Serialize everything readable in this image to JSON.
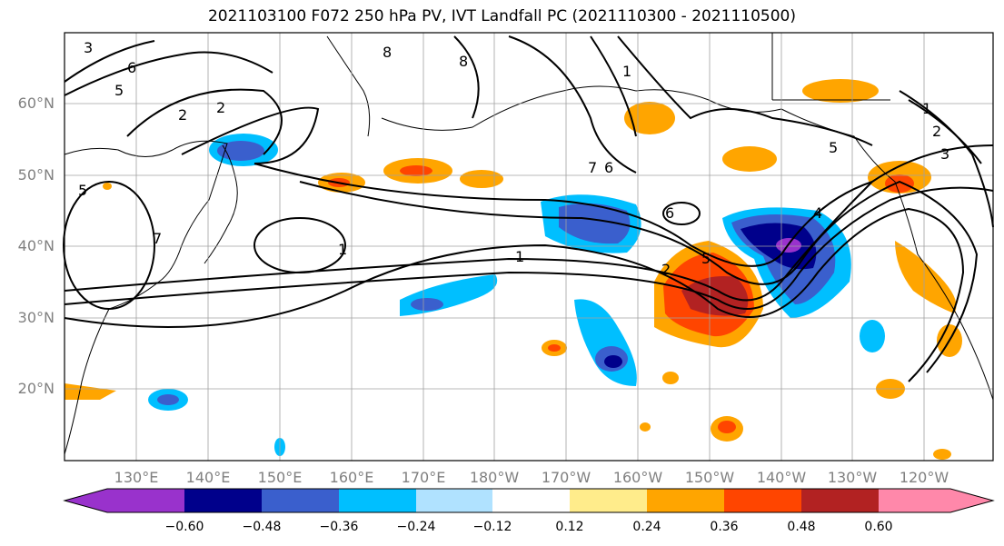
{
  "title": "2021103100 F072 250 hPa PV, IVT Landfall PC (2021110300 - 2021110500)",
  "lat_labels": [
    "60°N",
    "50°N",
    "40°N",
    "30°N",
    "20°N"
  ],
  "lon_labels": [
    "130°E",
    "140°E",
    "150°E",
    "160°E",
    "170°E",
    "180°W",
    "170°W",
    "160°W",
    "150°W",
    "140°W",
    "130°W",
    "120°W"
  ],
  "contour_labels": [
    "1",
    "2",
    "5",
    "6",
    "8",
    "1",
    "2",
    "3",
    "4",
    "5",
    "6",
    "7",
    "8",
    "2",
    "5",
    "6",
    "7",
    "1",
    "5",
    "1",
    "2",
    "3"
  ],
  "colorbar": {
    "ticks": [
      "−0.60",
      "−0.48",
      "−0.36",
      "−0.24",
      "−0.12",
      "0.12",
      "0.24",
      "0.36",
      "0.48",
      "0.60"
    ],
    "colors": [
      "#9932cc",
      "#00008b",
      "#3a5fcd",
      "#00bfff",
      "#b0e2ff",
      "#ffffff",
      "#ffec8b",
      "#ffa500",
      "#ff4500",
      "#b22222",
      "#ff88aa"
    ]
  }
}
